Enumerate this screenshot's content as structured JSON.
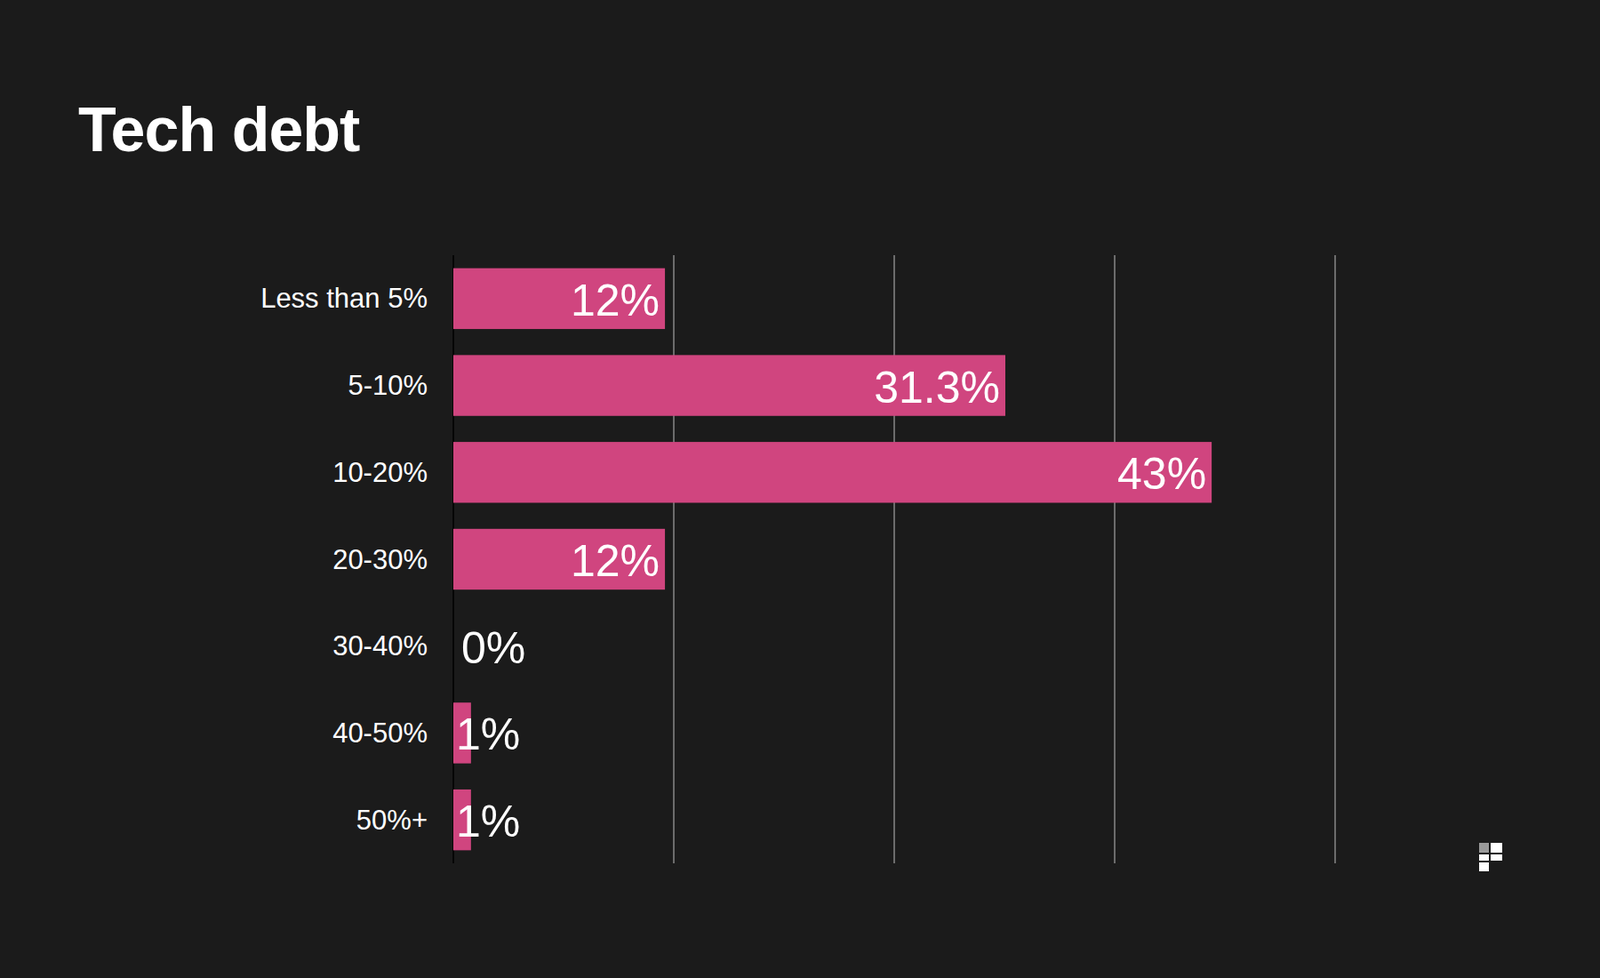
{
  "chart_data": {
    "type": "bar",
    "title": "Tech debt",
    "orientation": "horizontal",
    "categories": [
      "Less than 5%",
      "5-10%",
      "10-20%",
      "20-30%",
      "30-40%",
      "40-50%",
      "50%+"
    ],
    "values": [
      12,
      31.3,
      43,
      12,
      0,
      1,
      1
    ],
    "value_labels": [
      "12%",
      "31.3%",
      "43%",
      "12%",
      "0%",
      "1%",
      "1%"
    ],
    "color": "#d0457f",
    "xlim": [
      0,
      50
    ],
    "xticks": [
      0,
      12.5,
      25,
      37.5,
      50
    ],
    "grid": true,
    "data_labels": true,
    "tick_labels": false
  }
}
